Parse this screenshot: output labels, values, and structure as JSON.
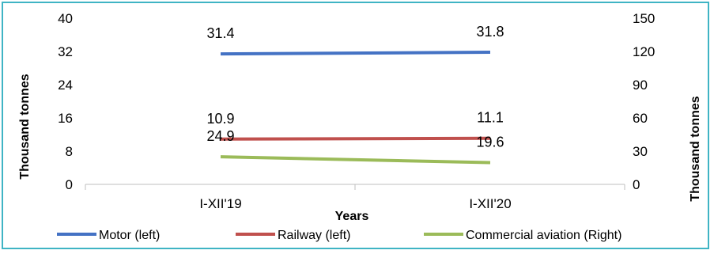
{
  "chart_data": {
    "type": "line",
    "title": "",
    "categories": [
      "I-XII'19",
      "I-XII'20"
    ],
    "xlabel": "Years",
    "ylabel_left": "Thousand tonnes",
    "ylabel_right": "Thousand tonnes",
    "y_left": {
      "min": 0,
      "max": 40,
      "ticks": [
        0,
        8,
        16,
        24,
        32,
        40
      ]
    },
    "y_right": {
      "min": 0,
      "max": 150,
      "ticks": [
        0,
        30,
        60,
        90,
        120,
        150
      ]
    },
    "grid": false,
    "legend_position": "bottom",
    "series": [
      {
        "name": "Motor (left)",
        "axis": "left",
        "color": "#4472c4",
        "values": [
          31.4,
          31.8
        ],
        "labels": [
          "31.4",
          "31.8"
        ]
      },
      {
        "name": "Railway (left)",
        "axis": "left",
        "color": "#c0504d",
        "values": [
          10.9,
          11.1
        ],
        "labels": [
          "10.9",
          "11.1"
        ]
      },
      {
        "name": "Commercial aviation (Right)",
        "axis": "right",
        "color": "#9bbb59",
        "values": [
          24.9,
          19.6
        ],
        "labels": [
          "24.9",
          "19.6"
        ]
      }
    ]
  }
}
